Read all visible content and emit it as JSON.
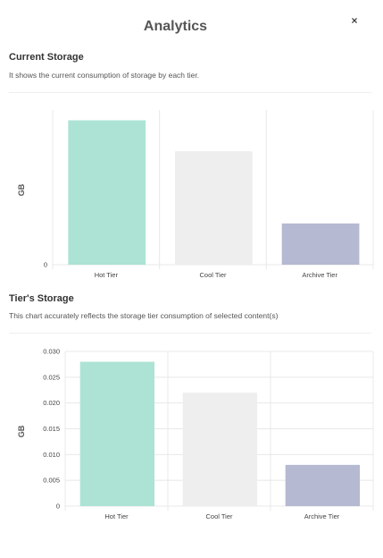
{
  "modal": {
    "title": "Analytics",
    "close_label": "×"
  },
  "current_storage": {
    "title": "Current Storage",
    "description": "It shows the current consumption of storage by each tier."
  },
  "tiers_storage": {
    "title": "Tier's Storage",
    "description": "This chart accurately reflects the storage tier consumption of selected content(s)"
  },
  "colors": {
    "hot": "#ace3d5",
    "cool": "#eeeeee",
    "archive": "#b5b9d1",
    "grid": "#e8e8e8"
  },
  "chart_data": [
    {
      "type": "bar",
      "categories": [
        "Hot Tier",
        "Cool Tier",
        "Archive Tier"
      ],
      "values": [
        0.028,
        0.022,
        0.008
      ],
      "ylabel": "GB",
      "yticks": [
        "0"
      ],
      "ylim": [
        0,
        0.03
      ],
      "grid": true,
      "colors": [
        "#ace3d5",
        "#eeeeee",
        "#b5b9d1"
      ]
    },
    {
      "type": "bar",
      "categories": [
        "Hot Tier",
        "Cool Tier",
        "Archive Tier"
      ],
      "values": [
        0.028,
        0.022,
        0.008
      ],
      "ylabel": "GB",
      "yticks": [
        "0",
        "0.005",
        "0.010",
        "0.015",
        "0.020",
        "0.025",
        "0.030"
      ],
      "ylim": [
        0,
        0.03
      ],
      "grid": true,
      "colors": [
        "#ace3d5",
        "#eeeeee",
        "#b5b9d1"
      ]
    }
  ]
}
